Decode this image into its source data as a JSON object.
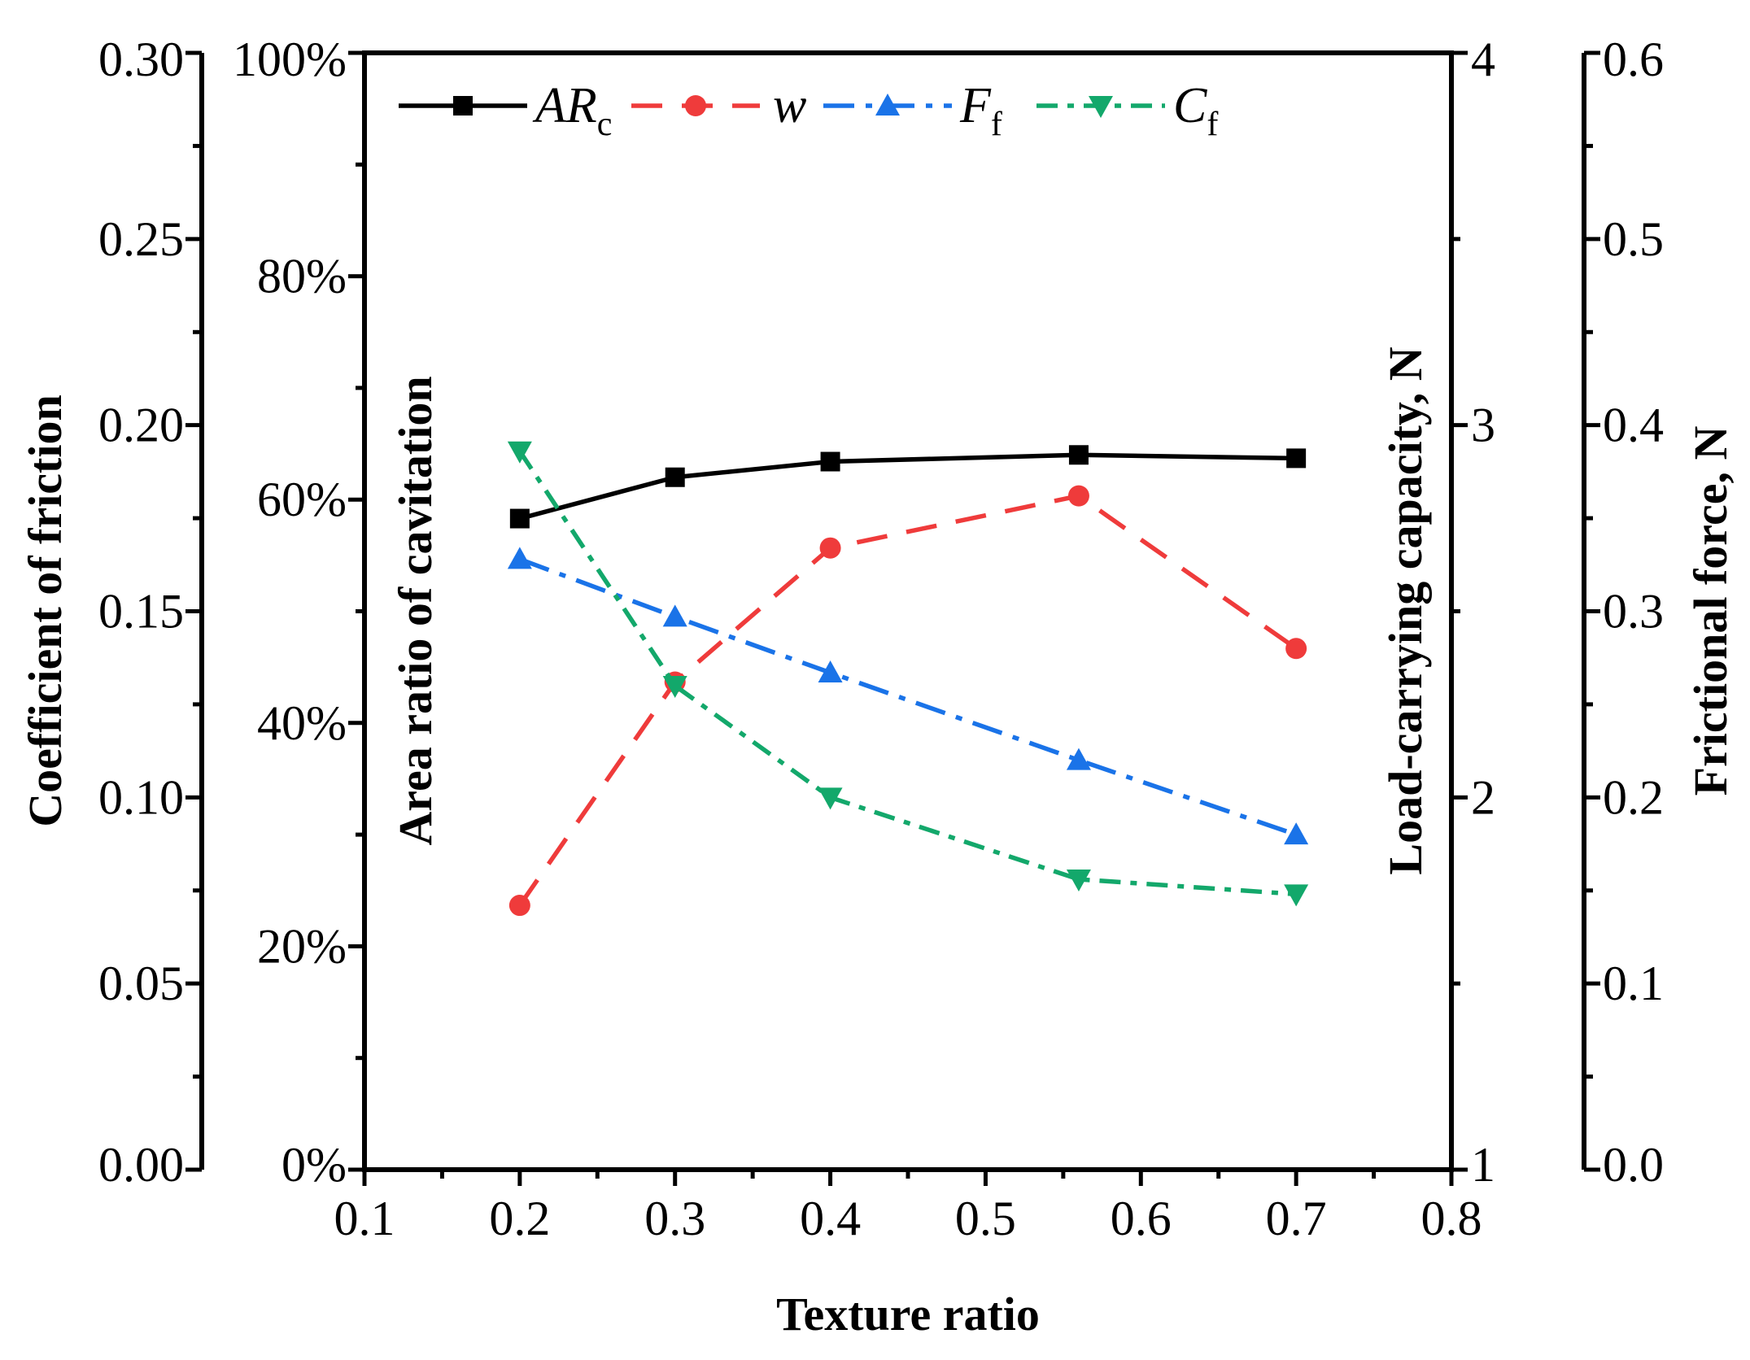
{
  "chart_data": {
    "type": "line",
    "xlabel": "Texture ratio",
    "xlim": [
      0.1,
      0.8
    ],
    "xticks": [
      "0.1",
      "0.2",
      "0.3",
      "0.4",
      "0.5",
      "0.6",
      "0.7",
      "0.8"
    ],
    "x": [
      0.2,
      0.3,
      0.4,
      0.56,
      0.7
    ],
    "axes": {
      "cf": {
        "label": "Coefficient of friction",
        "ylim": [
          0.0,
          0.3
        ],
        "ticks": [
          "0.00",
          "0.05",
          "0.10",
          "0.15",
          "0.20",
          "0.25",
          "0.30"
        ]
      },
      "arc": {
        "label": "Area ratio of cavitation",
        "ylim": [
          0,
          100
        ],
        "ticks": [
          "0%",
          "20%",
          "40%",
          "60%",
          "80%",
          "100%"
        ]
      },
      "w": {
        "label": "Load-carrying capacity, N",
        "ylim": [
          1,
          4
        ],
        "ticks": [
          "1",
          "2",
          "3",
          "4"
        ]
      },
      "ff": {
        "label": "Frictional force, N",
        "ylim": [
          0.0,
          0.6
        ],
        "ticks": [
          "0.0",
          "0.1",
          "0.2",
          "0.3",
          "0.4",
          "0.5",
          "0.6"
        ]
      }
    },
    "series": [
      {
        "name": "AR",
        "sub": "c",
        "axis": "arc",
        "values": [
          58.3,
          62.0,
          63.4,
          64.0,
          63.7
        ],
        "color": "#000000",
        "dash": "",
        "marker": "square"
      },
      {
        "name": "w",
        "sub": "",
        "axis": "w",
        "values": [
          1.71,
          2.31,
          2.67,
          2.81,
          2.4
        ],
        "color": "#ef3b3b",
        "dash": "38,24",
        "marker": "circle"
      },
      {
        "name": "F",
        "sub": "f",
        "axis": "ff",
        "values": [
          0.328,
          0.297,
          0.267,
          0.22,
          0.18
        ],
        "color": "#1a73e8",
        "dash": "38,14,8,14",
        "marker": "triangle-up"
      },
      {
        "name": "C",
        "sub": "f",
        "axis": "cf",
        "values": [
          0.193,
          0.13,
          0.1,
          0.078,
          0.074
        ],
        "color": "#13a86b",
        "dash": "26,12,8,12",
        "marker": "triangle-down"
      }
    ]
  }
}
